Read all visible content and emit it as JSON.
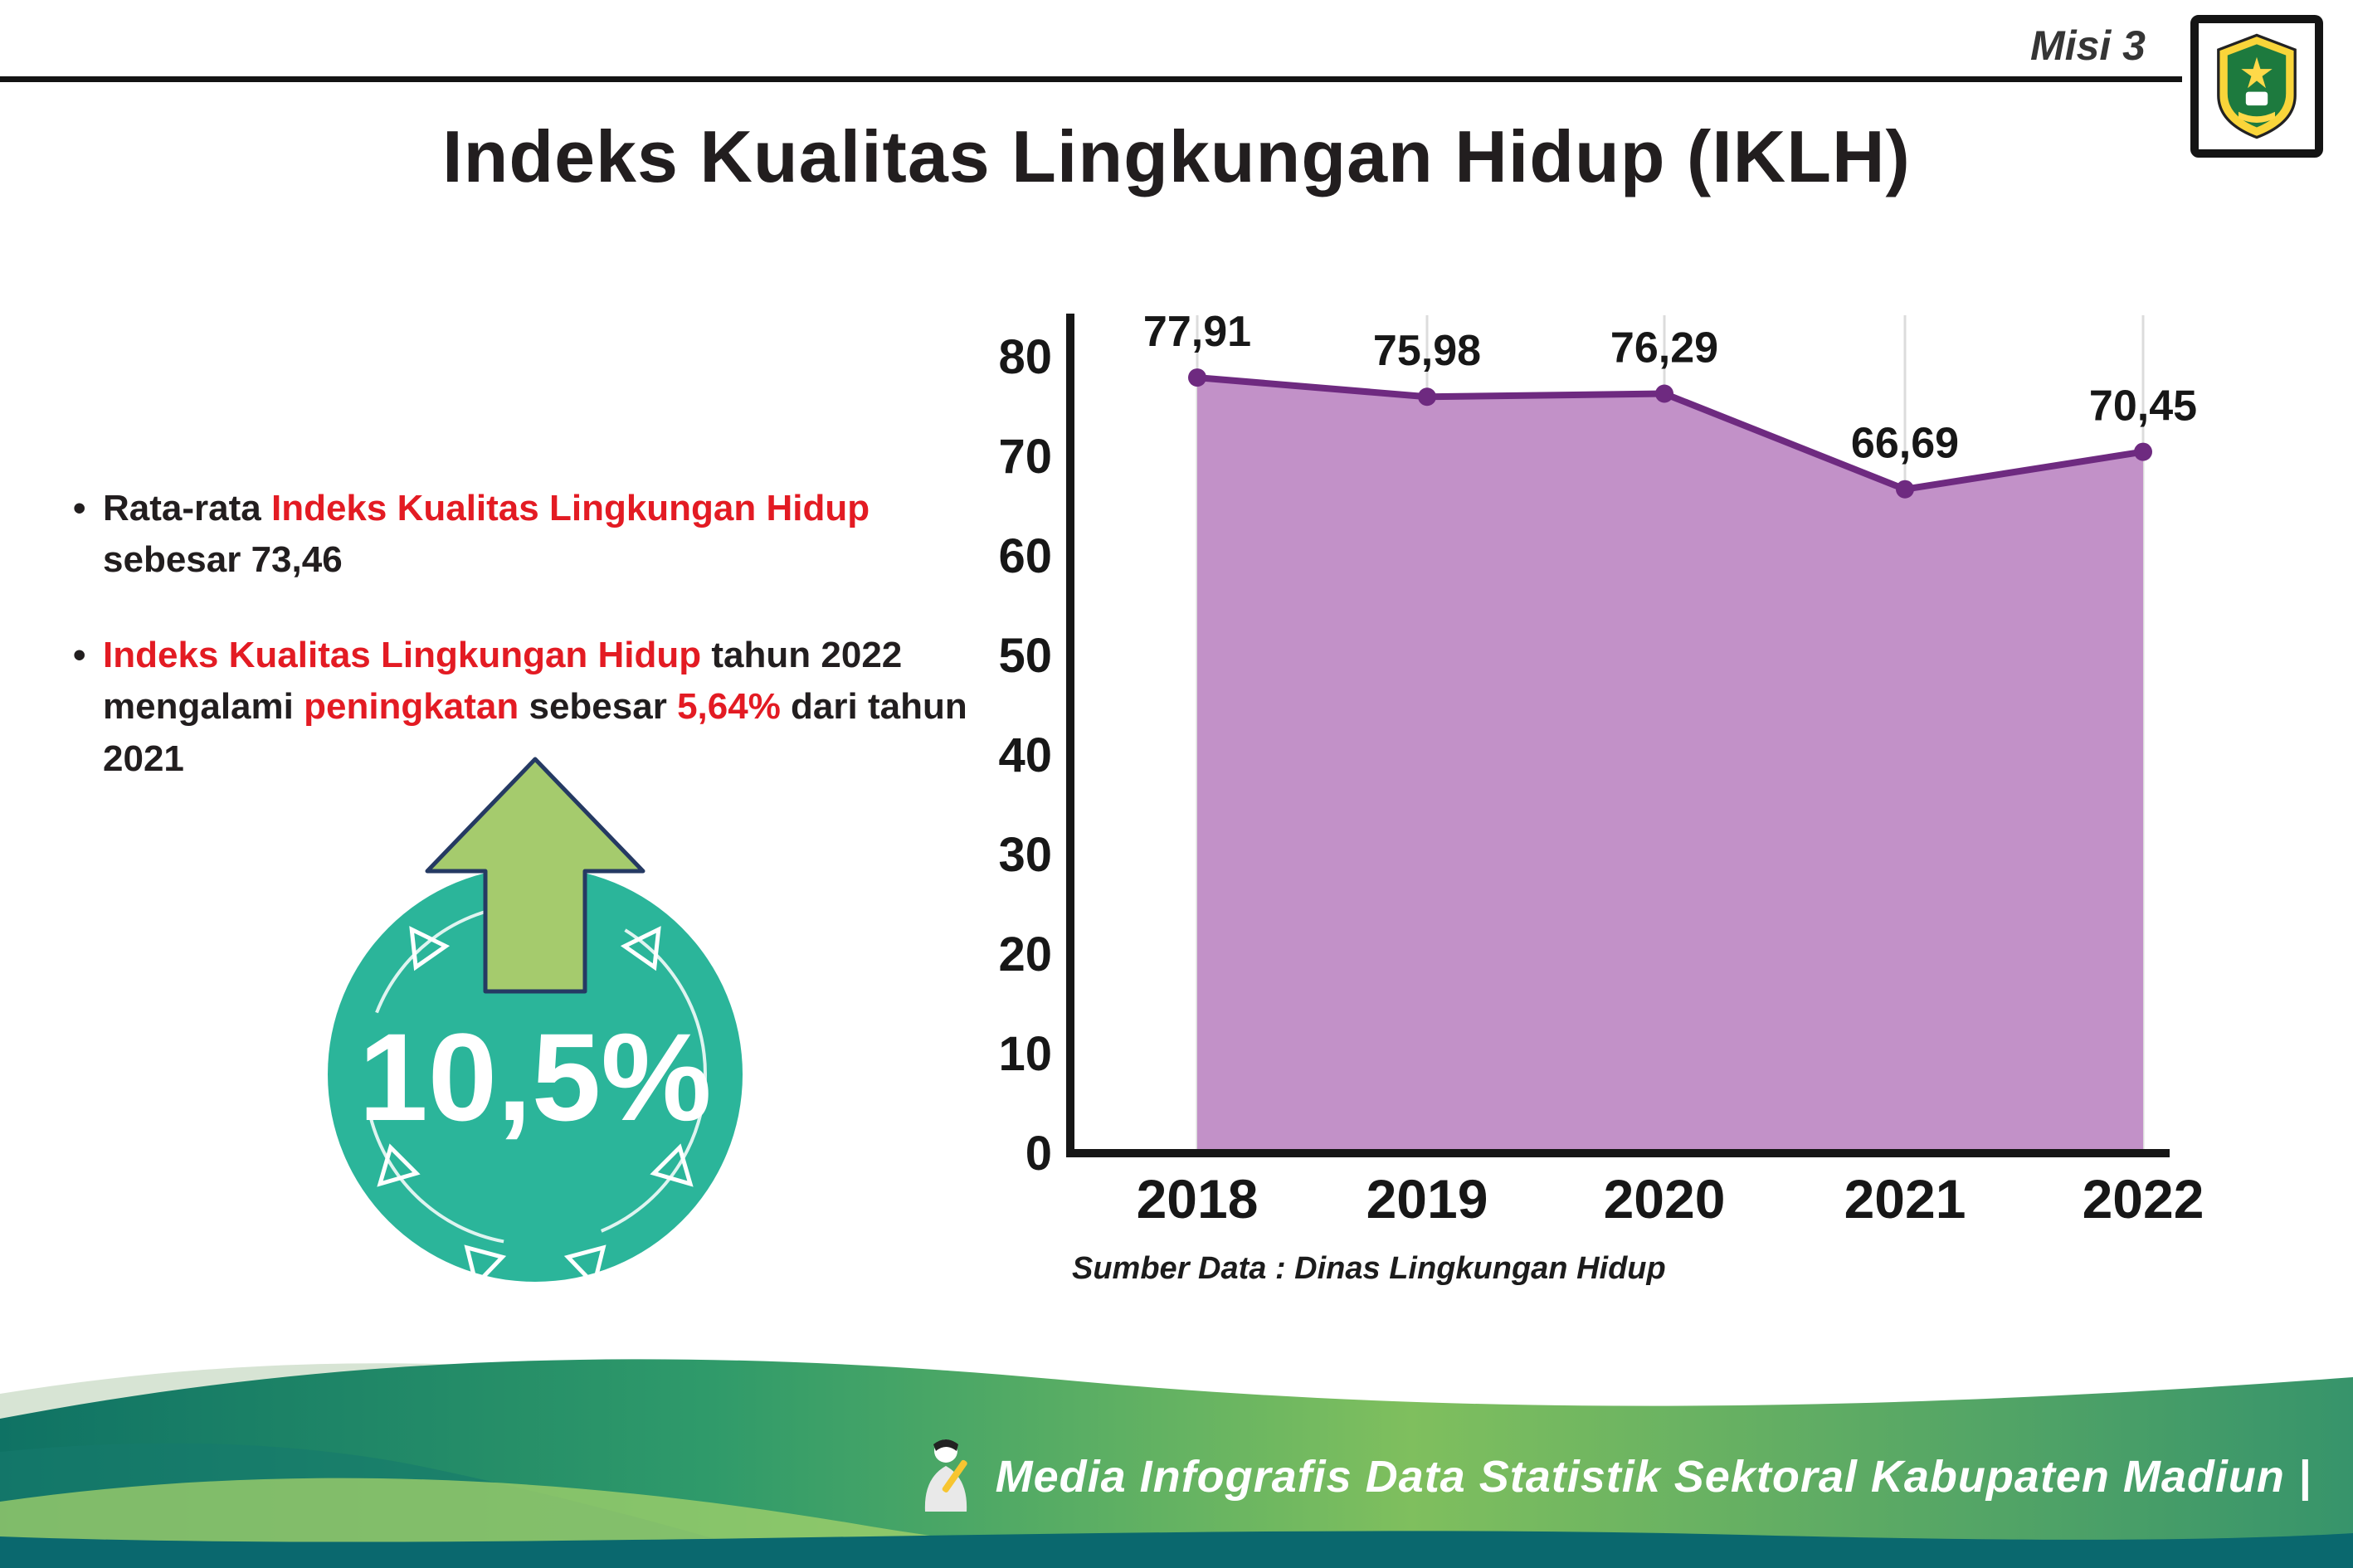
{
  "header": {
    "misi": "Misi 3",
    "title": "Indeks Kualitas Lingkungan Hidup (IKLH)"
  },
  "bullets": {
    "dot": "•",
    "b1": {
      "p1": "Rata-rata ",
      "r1": "Indeks Kualitas Lingkungan Hidup",
      "p2": "sebesar 73,46"
    },
    "b2": {
      "r1": "Indeks Kualitas Lingkungan Hidup",
      "p1": " tahun 2022 mengalami ",
      "r2": "peningkatan",
      "p2": " sebesar ",
      "r3": "5,64%",
      "p3": " dari tahun 2021"
    }
  },
  "badge": {
    "value": "10,5%"
  },
  "colors": {
    "red": "#e31b23",
    "teal": "#2bb59a",
    "arrow_green": "#a5cb6d",
    "arrow_outline": "#253a63",
    "line_purple": "#6e2a80",
    "fill_purple": "#c291c8"
  },
  "chart_data": {
    "type": "area",
    "title": "Indeks Kualitas Lingkungan Hidup (IKLH)",
    "categories": [
      "2018",
      "2019",
      "2020",
      "2021",
      "2022"
    ],
    "values": [
      77.91,
      75.98,
      76.29,
      66.69,
      70.45
    ],
    "value_labels": [
      "77,91",
      "75,98",
      "76,29",
      "66,69",
      "70,45"
    ],
    "xlabel": "",
    "ylabel": "",
    "ylim": [
      0,
      80
    ],
    "yticks": [
      0,
      10,
      20,
      30,
      40,
      50,
      60,
      70,
      80
    ],
    "grid": "vertical",
    "legend": "none",
    "line_color": "#6e2a80",
    "fill_color": "#c291c8",
    "marker_color": "#6e2a80",
    "source": "Sumber Data : Dinas Lingkungan Hidup"
  },
  "footer": {
    "credit": "Media Infografis Data Statistik Sektoral Kabupaten Madiun |"
  }
}
